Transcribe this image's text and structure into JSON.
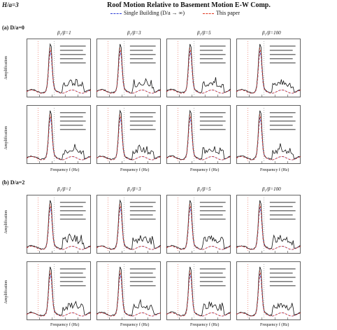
{
  "header": {
    "ha_label": "H/a=3",
    "title": "Roof Motion Relative to Basement Motion E-W Comp.",
    "legend": [
      {
        "label": "Single Building (D/a → ∞)",
        "color": "#2a3bd6"
      },
      {
        "label": "This paper",
        "color": "#e0331b"
      }
    ]
  },
  "sections": [
    {
      "label": "(a) D/a=0"
    },
    {
      "label": "(b) D/a=2"
    }
  ],
  "column_labels": [
    "β₁/β=1",
    "β₁/β=3",
    "β₁/β=5",
    "β₁/β=100"
  ],
  "row_y_labels": [
    "Amplification",
    "Amplification"
  ],
  "x_axis_label": "Frequency f (Hz)",
  "colors": {
    "black": "#111111",
    "blue": "#2a3bd6",
    "red": "#e0331b",
    "gray": "#666666"
  }
}
